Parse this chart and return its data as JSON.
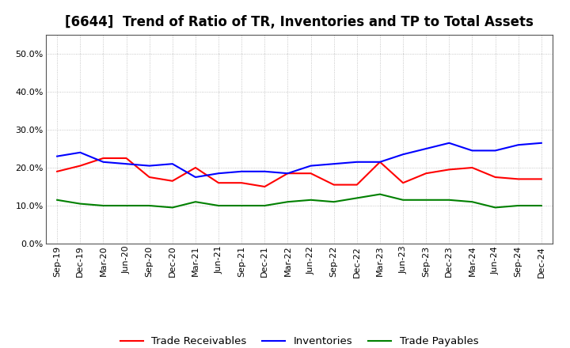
{
  "title": "[6644]  Trend of Ratio of TR, Inventories and TP to Total Assets",
  "x_labels": [
    "Sep-19",
    "Dec-19",
    "Mar-20",
    "Jun-20",
    "Sep-20",
    "Dec-20",
    "Mar-21",
    "Jun-21",
    "Sep-21",
    "Dec-21",
    "Mar-22",
    "Jun-22",
    "Sep-22",
    "Dec-22",
    "Mar-23",
    "Jun-23",
    "Sep-23",
    "Dec-23",
    "Mar-24",
    "Jun-24",
    "Sep-24",
    "Dec-24"
  ],
  "trade_receivables": [
    0.19,
    0.205,
    0.225,
    0.225,
    0.175,
    0.165,
    0.2,
    0.16,
    0.16,
    0.15,
    0.185,
    0.185,
    0.155,
    0.155,
    0.215,
    0.16,
    0.185,
    0.195,
    0.2,
    0.175,
    0.17,
    0.17
  ],
  "inventories": [
    0.23,
    0.24,
    0.215,
    0.21,
    0.205,
    0.21,
    0.175,
    0.185,
    0.19,
    0.19,
    0.185,
    0.205,
    0.21,
    0.215,
    0.215,
    0.235,
    0.25,
    0.265,
    0.245,
    0.245,
    0.26,
    0.265
  ],
  "trade_payables": [
    0.115,
    0.105,
    0.1,
    0.1,
    0.1,
    0.095,
    0.11,
    0.1,
    0.1,
    0.1,
    0.11,
    0.115,
    0.11,
    0.12,
    0.13,
    0.115,
    0.115,
    0.115,
    0.11,
    0.095,
    0.1,
    0.1
  ],
  "ylim": [
    0.0,
    0.55
  ],
  "yticks": [
    0.0,
    0.1,
    0.2,
    0.3,
    0.4,
    0.5
  ],
  "colors": {
    "trade_receivables": "#ff0000",
    "inventories": "#0000ff",
    "trade_payables": "#008000"
  },
  "background_color": "#ffffff",
  "grid_color": "#999999",
  "title_fontsize": 12,
  "legend_fontsize": 9.5,
  "tick_fontsize": 8
}
